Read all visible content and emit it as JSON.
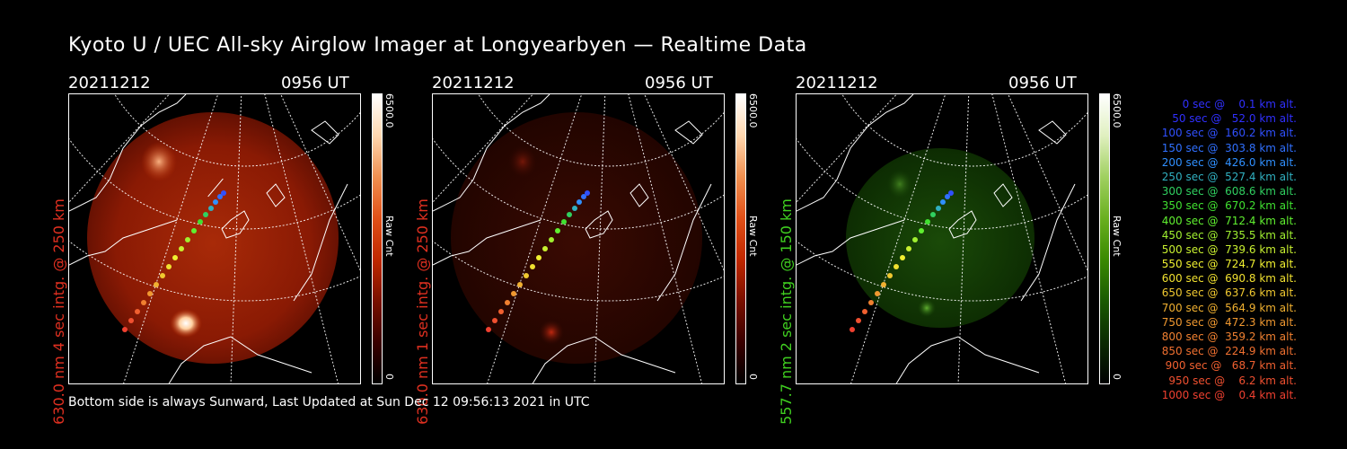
{
  "title": "Kyoto U / UEC All-sky Airglow Imager at Longyearbyen — Realtime Data",
  "footer": "Bottom side is always Sunward, Last Updated at Sun Dec 12 09:56:13 2021 in UTC",
  "panels": [
    {
      "date": "20211212",
      "time": "0956 UT",
      "side_label": "630.0 nm 4 sec intg. @ 250 km",
      "label_color": "#e03020",
      "cbar_max": "6500.0",
      "cbar_unit": "Raw Cnt",
      "cbar_min": "0",
      "cbar_colors": [
        "#000000",
        "#3a0000",
        "#7a1000",
        "#c02800",
        "#e05018",
        "#f09050",
        "#ffd8b0",
        "#ffffff"
      ]
    },
    {
      "date": "20211212",
      "time": "0956 UT",
      "side_label": "630.0 nm 1 sec intg. @ 250 km",
      "label_color": "#e03020",
      "cbar_max": "6500.0",
      "cbar_unit": "Raw Cnt",
      "cbar_min": "0",
      "cbar_colors": [
        "#000000",
        "#3a0000",
        "#7a1000",
        "#c02800",
        "#e05018",
        "#f09050",
        "#ffd8b0",
        "#ffffff"
      ]
    },
    {
      "date": "20211212",
      "time": "0956 UT",
      "side_label": "557.7 nm 2 sec intg. @ 150 km",
      "label_color": "#40d020",
      "cbar_max": "6500.0",
      "cbar_unit": "Raw Cnt",
      "cbar_min": "0",
      "cbar_colors": [
        "#000000",
        "#0a2a00",
        "#1a5a00",
        "#3a8a00",
        "#6ab020",
        "#a0d060",
        "#e0f0c0",
        "#ffffff"
      ]
    }
  ],
  "legend": [
    {
      "text": "   0 sec @    0.1 km alt.",
      "color": "#3030ff"
    },
    {
      "text": "  50 sec @   52.0 km alt.",
      "color": "#3030ff"
    },
    {
      "text": " 100 sec @  160.2 km alt.",
      "color": "#3050ff"
    },
    {
      "text": " 150 sec @  303.8 km alt.",
      "color": "#3070ff"
    },
    {
      "text": " 200 sec @  426.0 km alt.",
      "color": "#3090ff"
    },
    {
      "text": " 250 sec @  527.4 km alt.",
      "color": "#30b0c0"
    },
    {
      "text": " 300 sec @  608.6 km alt.",
      "color": "#30d060"
    },
    {
      "text": " 350 sec @  670.2 km alt.",
      "color": "#40e030"
    },
    {
      "text": " 400 sec @  712.4 km alt.",
      "color": "#60f030"
    },
    {
      "text": " 450 sec @  735.5 km alt.",
      "color": "#a0f030"
    },
    {
      "text": " 500 sec @  739.6 km alt.",
      "color": "#c8f030"
    },
    {
      "text": " 550 sec @  724.7 km alt.",
      "color": "#f0f030"
    },
    {
      "text": " 600 sec @  690.8 km alt.",
      "color": "#f0e030"
    },
    {
      "text": " 650 sec @  637.6 km alt.",
      "color": "#f0c830"
    },
    {
      "text": " 700 sec @  564.9 km alt.",
      "color": "#f0b030"
    },
    {
      "text": " 750 sec @  472.3 km alt.",
      "color": "#f09830"
    },
    {
      "text": " 800 sec @  359.2 km alt.",
      "color": "#f08030"
    },
    {
      "text": " 850 sec @  224.9 km alt.",
      "color": "#f07030"
    },
    {
      "text": " 900 sec @   68.7 km alt.",
      "color": "#f06030"
    },
    {
      "text": " 950 sec @    6.2 km alt.",
      "color": "#f05030"
    },
    {
      "text": "1000 sec @    0.4 km alt.",
      "color": "#f04030"
    }
  ]
}
